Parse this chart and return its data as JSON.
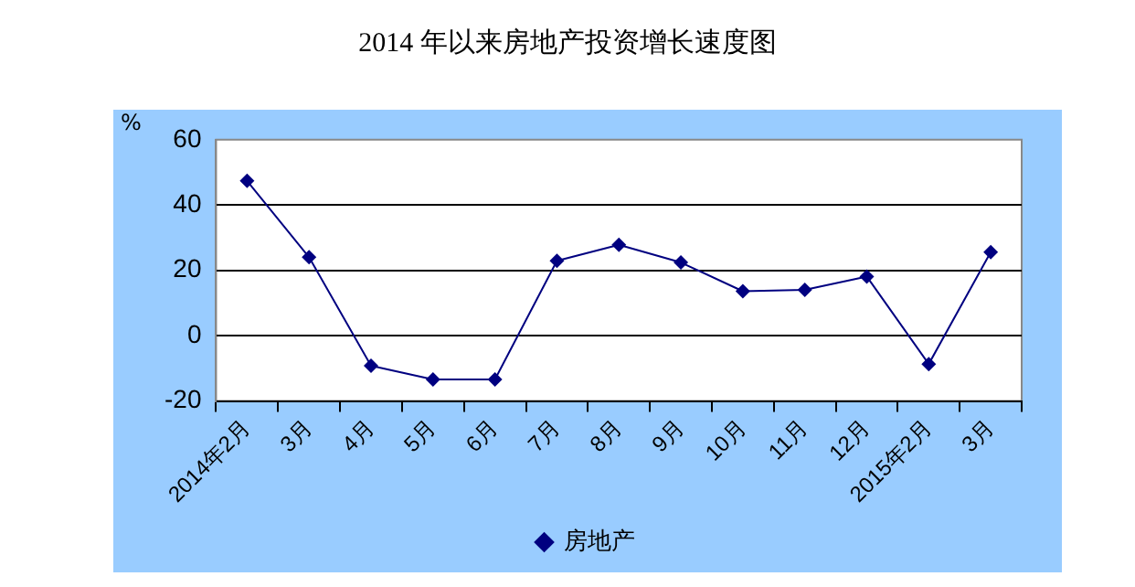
{
  "chart_data": {
    "type": "line",
    "title": "2014 年以来房地产投资增长速度图",
    "ylabel": "%",
    "categories": [
      "2014年2月",
      "3月",
      "4月",
      "5月",
      "6月",
      "7月",
      "8月",
      "9月",
      "10月",
      "11月",
      "12月",
      "2015年2月",
      "3月"
    ],
    "series": [
      {
        "name": "房地产",
        "color": "#000080",
        "values": [
          47.4,
          24.0,
          -9.2,
          -13.4,
          -13.4,
          22.9,
          27.8,
          22.4,
          13.6,
          14.0,
          18.1,
          -8.7,
          25.6
        ]
      }
    ],
    "ylim": [
      -20,
      60
    ],
    "yticks": [
      -20,
      0,
      20,
      40,
      60
    ],
    "grid": "y",
    "legend": "bottom",
    "marker": "diamond",
    "line_style": "solid"
  }
}
